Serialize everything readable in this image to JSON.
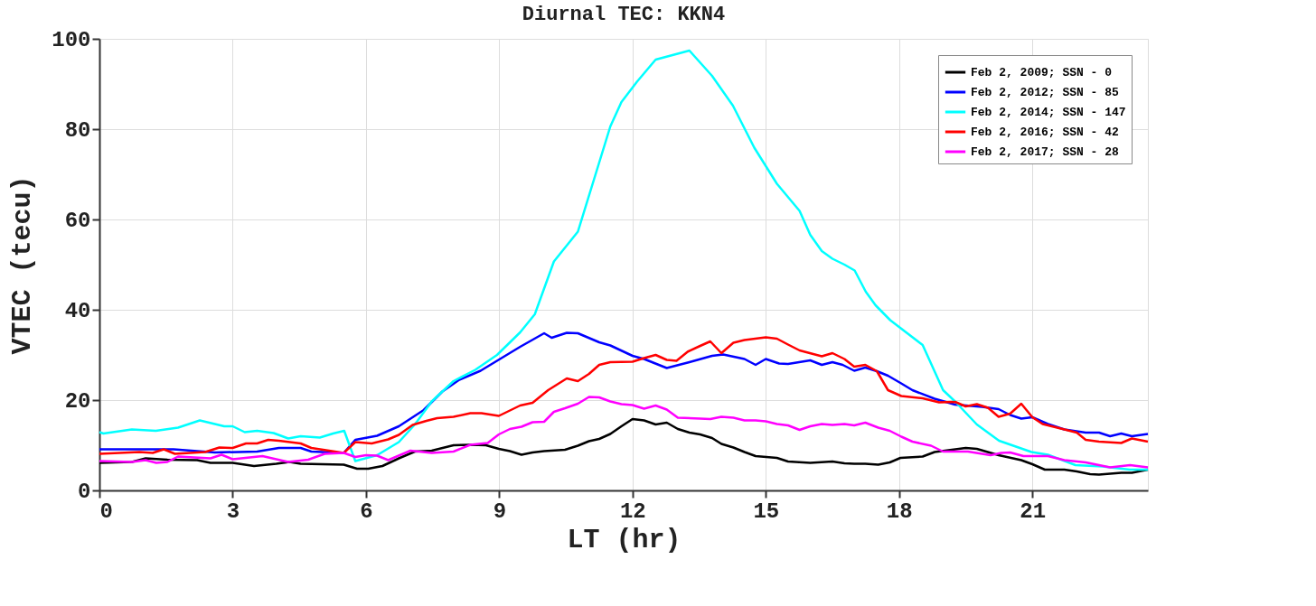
{
  "chart_data": {
    "type": "line",
    "title": "Diurnal TEC: KKN4",
    "xlabel": "LT (hr)",
    "ylabel": "VTEC (tecu)",
    "xlim": [
      0,
      23.6
    ],
    "xticks": [
      0,
      3,
      6,
      9,
      12,
      15,
      18,
      21
    ],
    "ylim": [
      0,
      100
    ],
    "yticks": [
      0,
      20,
      40,
      60,
      80,
      100
    ],
    "grid": true,
    "legend": "top right",
    "marker": "none",
    "line_style": "solid",
    "series": [
      {
        "name": "Feb 2, 2009; SSN - 0",
        "color": "#000000",
        "x": [
          0,
          0.73,
          1.04,
          1.53,
          2.2,
          2.5,
          3.0,
          3.48,
          3.98,
          4.28,
          4.53,
          5.5,
          5.8,
          6.05,
          6.37,
          6.74,
          7.1,
          7.48,
          7.97,
          8.35,
          8.7,
          8.99,
          9.24,
          9.5,
          9.75,
          10.01,
          10.48,
          10.77,
          11.02,
          11.25,
          11.5,
          11.75,
          12.0,
          12.26,
          12.52,
          12.77,
          13.02,
          13.28,
          13.52,
          13.79,
          14.0,
          14.27,
          14.52,
          14.77,
          15.25,
          15.5,
          16.0,
          16.5,
          16.77,
          16.99,
          17.24,
          17.53,
          17.79,
          18.03,
          18.53,
          18.8,
          19.5,
          19.75,
          20.24,
          20.75,
          21.0,
          21.28,
          21.72,
          22.0,
          22.3,
          22.5,
          23.0,
          23.24,
          23.6
        ],
        "values": [
          6.1,
          6.3,
          7.1,
          6.8,
          6.7,
          6.1,
          6.1,
          5.4,
          5.9,
          6.3,
          5.9,
          5.7,
          4.8,
          4.8,
          5.4,
          7.1,
          8.6,
          8.8,
          10.0,
          10.1,
          10.0,
          9.2,
          8.7,
          7.9,
          8.4,
          8.7,
          9.0,
          9.9,
          10.9,
          11.4,
          12.5,
          14.2,
          15.8,
          15.5,
          14.6,
          15.0,
          13.6,
          12.8,
          12.4,
          11.6,
          10.3,
          9.5,
          8.5,
          7.6,
          7.2,
          6.4,
          6.1,
          6.4,
          6.0,
          5.9,
          5.9,
          5.7,
          6.2,
          7.2,
          7.5,
          8.5,
          9.4,
          9.2,
          7.8,
          6.7,
          5.8,
          4.6,
          4.6,
          4.2,
          3.6,
          3.5,
          3.9,
          3.9,
          4.6
        ]
      },
      {
        "name": "Feb 2, 2012; SSN - 85",
        "color": "#0000ff",
        "x": [
          0,
          1.67,
          2.6,
          3.55,
          4.04,
          4.53,
          4.77,
          5.5,
          5.76,
          6.25,
          6.74,
          7.3,
          7.72,
          8.1,
          8.58,
          9.47,
          10.01,
          10.18,
          10.52,
          10.77,
          11.25,
          11.5,
          12.0,
          12.26,
          12.77,
          13.28,
          13.79,
          14.04,
          14.52,
          14.77,
          15.0,
          15.3,
          15.5,
          16.0,
          16.26,
          16.5,
          16.73,
          16.99,
          17.24,
          17.5,
          17.75,
          18.03,
          18.3,
          18.8,
          19.26,
          19.87,
          20.24,
          20.5,
          20.75,
          21.0,
          21.35,
          21.72,
          22.2,
          22.5,
          22.75,
          23.0,
          23.24,
          23.6
        ],
        "values": [
          9.1,
          9.1,
          8.4,
          8.6,
          9.4,
          9.4,
          8.6,
          8.3,
          11.2,
          12.1,
          14.2,
          17.8,
          21.9,
          24.5,
          26.5,
          31.8,
          34.8,
          33.8,
          34.9,
          34.8,
          32.8,
          32.1,
          29.8,
          29.1,
          27.1,
          28.4,
          29.8,
          30.1,
          29.1,
          27.8,
          29.1,
          28.1,
          28.0,
          28.8,
          27.8,
          28.4,
          27.8,
          26.5,
          27.2,
          26.4,
          25.4,
          23.8,
          22.2,
          20.3,
          19.0,
          18.5,
          18.0,
          16.7,
          15.9,
          16.2,
          14.7,
          13.5,
          12.8,
          12.8,
          12.0,
          12.6,
          12.0,
          12.5
        ]
      },
      {
        "name": "Feb 2, 2014; SSN - 147",
        "color": "#00ffff",
        "x": [
          0,
          0.09,
          0.73,
          1.27,
          1.77,
          2.26,
          2.81,
          3.0,
          3.27,
          3.55,
          3.92,
          4.25,
          4.53,
          4.96,
          5.26,
          5.51,
          5.76,
          6.25,
          6.74,
          7.1,
          7.48,
          7.97,
          8.46,
          8.95,
          9.47,
          9.8,
          10.23,
          10.77,
          11.5,
          11.75,
          12.1,
          12.52,
          13.28,
          13.79,
          14.26,
          14.74,
          15.25,
          15.76,
          16.0,
          16.26,
          16.5,
          16.77,
          17.0,
          17.25,
          17.47,
          17.8,
          18.53,
          18.99,
          19.26,
          19.75,
          20.25,
          20.98,
          21.35,
          21.97,
          22.58,
          23.19,
          23.6
        ],
        "values": [
          12.9,
          12.6,
          13.5,
          13.2,
          13.9,
          15.5,
          14.2,
          14.2,
          12.9,
          13.2,
          12.7,
          11.5,
          12.0,
          11.7,
          12.6,
          13.2,
          6.5,
          7.8,
          10.7,
          14.6,
          19.7,
          24.2,
          26.7,
          30.0,
          35.0,
          39.0,
          50.7,
          57.3,
          80.6,
          86.0,
          90.5,
          95.4,
          97.4,
          91.8,
          85.2,
          75.9,
          67.9,
          61.9,
          56.6,
          53.0,
          51.3,
          50.0,
          48.7,
          44.0,
          41.0,
          37.7,
          32.2,
          22.2,
          19.7,
          14.6,
          11.0,
          8.5,
          7.9,
          5.6,
          5.3,
          4.6,
          4.6
        ]
      },
      {
        "name": "Feb 2, 2016; SSN - 42",
        "color": "#ff0000",
        "x": [
          0,
          0.9,
          1.2,
          1.45,
          1.7,
          2.38,
          2.7,
          3.0,
          3.3,
          3.55,
          3.8,
          4.04,
          4.53,
          4.77,
          5.5,
          5.76,
          6.13,
          6.5,
          6.74,
          7.05,
          7.36,
          7.6,
          7.97,
          8.35,
          8.6,
          8.99,
          9.47,
          9.75,
          10.1,
          10.52,
          10.77,
          11.02,
          11.25,
          11.5,
          12.0,
          12.26,
          12.52,
          12.77,
          12.99,
          13.24,
          13.5,
          13.75,
          14.0,
          14.27,
          14.52,
          15.0,
          15.25,
          15.5,
          15.76,
          16.26,
          16.5,
          16.77,
          16.99,
          17.24,
          17.5,
          17.75,
          18.05,
          18.53,
          18.9,
          19.26,
          19.5,
          19.75,
          20.0,
          20.24,
          20.5,
          20.75,
          21.0,
          21.23,
          21.72,
          22.0,
          22.2,
          22.5,
          23.0,
          23.24,
          23.6
        ],
        "values": [
          8.1,
          8.5,
          8.3,
          9.1,
          8.1,
          8.5,
          9.5,
          9.4,
          10.4,
          10.4,
          11.2,
          11.0,
          10.4,
          9.4,
          8.3,
          10.7,
          10.4,
          11.3,
          12.3,
          14.5,
          15.4,
          16.0,
          16.3,
          17.1,
          17.1,
          16.5,
          18.8,
          19.4,
          22.2,
          24.8,
          24.2,
          25.8,
          27.8,
          28.4,
          28.5,
          29.3,
          30.0,
          28.9,
          28.7,
          30.7,
          31.9,
          33.0,
          30.4,
          32.7,
          33.3,
          33.9,
          33.6,
          32.3,
          31.0,
          29.7,
          30.4,
          29.1,
          27.4,
          27.8,
          26.4,
          22.2,
          20.9,
          20.4,
          19.5,
          19.6,
          18.6,
          19.1,
          18.3,
          16.3,
          17.0,
          19.2,
          16.2,
          14.7,
          13.5,
          12.8,
          11.2,
          10.8,
          10.5,
          11.5,
          10.8
        ]
      },
      {
        "name": "Feb 2, 2017; SSN - 28",
        "color": "#ff00ff",
        "x": [
          0,
          0.73,
          1.04,
          1.28,
          1.53,
          1.77,
          2.5,
          2.75,
          3.0,
          3.67,
          4.25,
          4.7,
          5.07,
          5.5,
          5.76,
          6.0,
          6.25,
          6.5,
          7.0,
          7.48,
          7.97,
          8.35,
          8.74,
          8.99,
          9.24,
          9.5,
          9.75,
          10.01,
          10.23,
          10.48,
          10.77,
          11.02,
          11.25,
          11.5,
          11.75,
          12.0,
          12.26,
          12.52,
          12.77,
          13.02,
          13.52,
          13.75,
          14.0,
          14.27,
          14.52,
          14.77,
          15.0,
          15.25,
          15.5,
          15.76,
          16.0,
          16.26,
          16.5,
          16.77,
          16.99,
          17.24,
          17.53,
          17.79,
          18.05,
          18.3,
          18.72,
          18.99,
          19.55,
          20.06,
          20.3,
          20.5,
          20.8,
          21.35,
          21.72,
          22.2,
          22.75,
          23.2,
          23.6
        ],
        "values": [
          6.5,
          6.3,
          6.7,
          6.1,
          6.3,
          7.5,
          7.1,
          7.9,
          6.9,
          7.6,
          6.3,
          6.8,
          8.1,
          8.3,
          7.4,
          7.8,
          7.7,
          6.7,
          8.8,
          8.3,
          8.6,
          10.1,
          10.5,
          12.4,
          13.6,
          14.1,
          15.1,
          15.2,
          17.4,
          18.2,
          19.2,
          20.7,
          20.6,
          19.7,
          19.1,
          18.9,
          18.1,
          18.8,
          17.9,
          16.1,
          15.9,
          15.8,
          16.3,
          16.1,
          15.5,
          15.5,
          15.3,
          14.7,
          14.4,
          13.4,
          14.2,
          14.7,
          14.5,
          14.7,
          14.4,
          15.0,
          13.9,
          13.2,
          11.9,
          10.8,
          9.9,
          8.6,
          8.6,
          7.8,
          8.3,
          8.4,
          7.6,
          7.6,
          6.7,
          6.2,
          5.1,
          5.6,
          5.1
        ]
      }
    ]
  }
}
